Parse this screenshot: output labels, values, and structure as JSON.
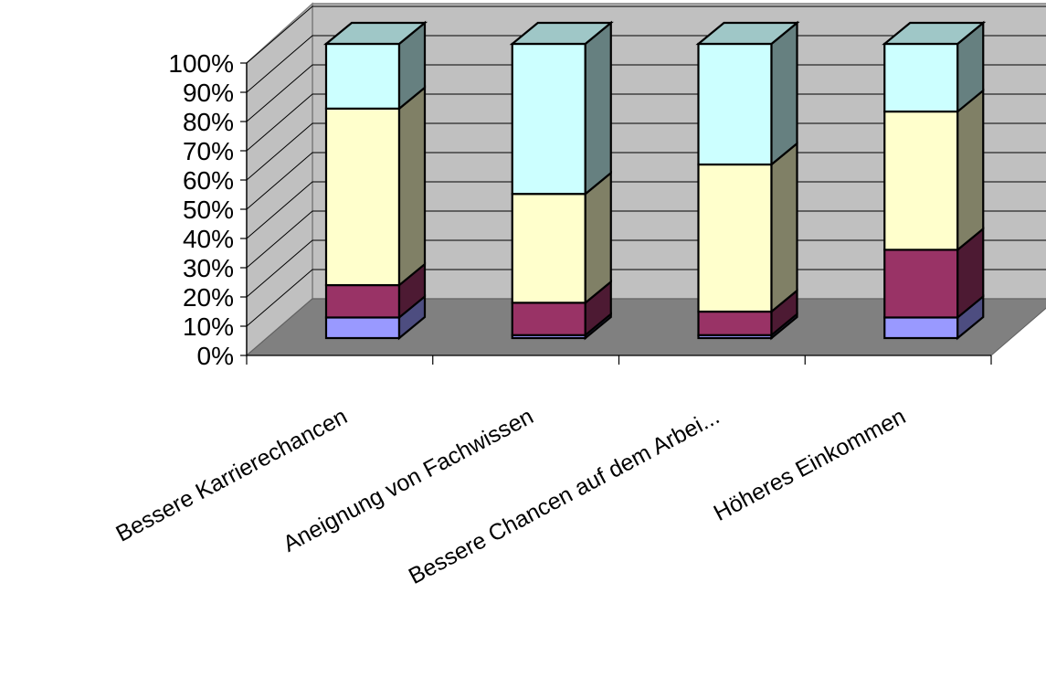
{
  "chart_data": {
    "type": "bar",
    "stacked": "percent",
    "three_d": true,
    "categories": [
      "Bessere Karrierechancen",
      "Aneignung von Fachwissen",
      "Bessere Chancen auf dem Arbei...",
      "Höheres Einkommen"
    ],
    "series": [
      {
        "values": [
          7,
          1,
          1,
          7
        ],
        "color": "#9999ff"
      },
      {
        "values": [
          11,
          11,
          8,
          23
        ],
        "color": "#993366"
      },
      {
        "values": [
          60,
          37,
          50,
          47
        ],
        "color": "#ffffcc"
      },
      {
        "values": [
          22,
          51,
          41,
          23
        ],
        "color": "#ccffff"
      }
    ],
    "y_ticks": [
      "0%",
      "10%",
      "20%",
      "30%",
      "40%",
      "50%",
      "60%",
      "70%",
      "80%",
      "90%",
      "100%"
    ],
    "ylim": [
      0,
      100
    ],
    "grid": true,
    "legend": "none",
    "colors": {
      "back_wall": "#c0c0c0",
      "floor": "#808080",
      "grid": "#000000"
    }
  }
}
